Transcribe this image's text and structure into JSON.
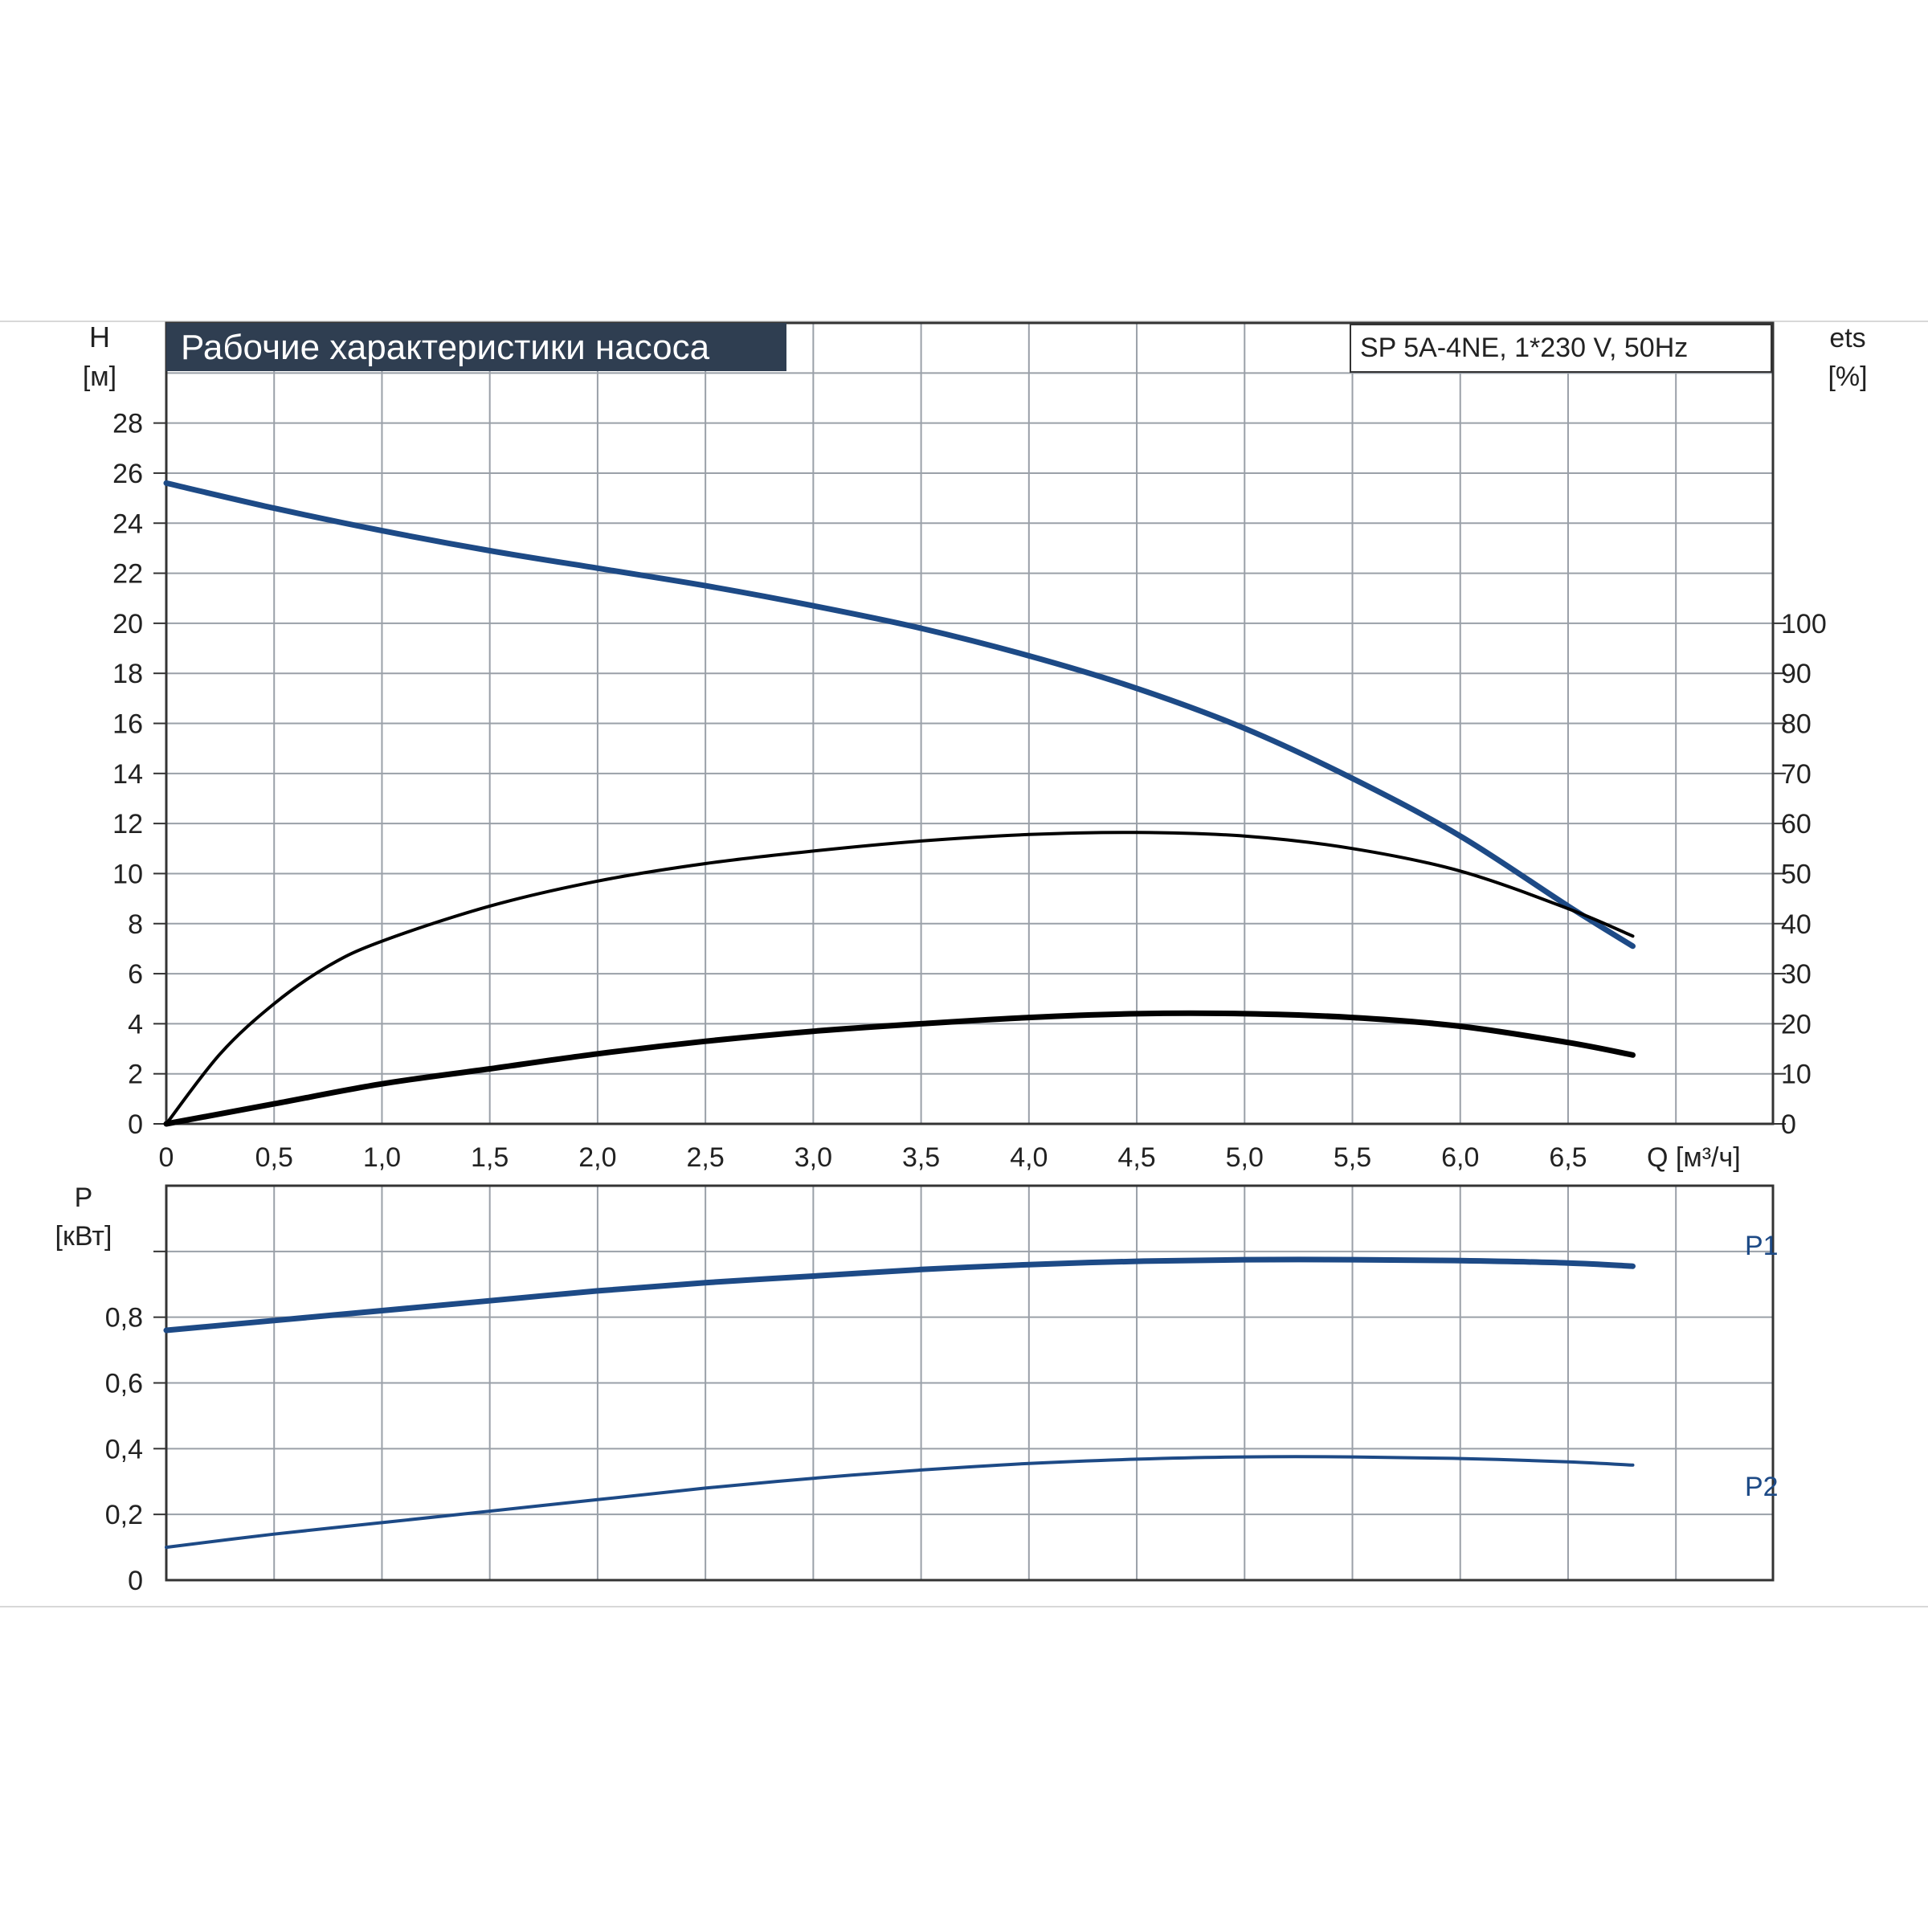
{
  "chart_data": [
    {
      "type": "line",
      "title": "Рабочие характеристики насоса",
      "subtitle": "SP 5A-4NE, 1*230 V, 50Hz",
      "xlabel": "Q [м³/ч]",
      "ylabel_top": "H",
      "ylabel_bottom": "[м]",
      "y2label_top": "ets",
      "y2label_bottom": "[%]",
      "xlim": [
        0,
        7.45
      ],
      "ylim": [
        0,
        32
      ],
      "y2lim": [
        0,
        160
      ],
      "grid": true,
      "x_ticks": [
        "0",
        "0,5",
        "1,0",
        "1,5",
        "2,0",
        "2,5",
        "3,0",
        "3,5",
        "4,0",
        "4,5",
        "5,0",
        "5,5",
        "6,0",
        "6,5"
      ],
      "y_ticks": [
        "0",
        "2",
        "4",
        "6",
        "8",
        "10",
        "12",
        "14",
        "16",
        "18",
        "20",
        "22",
        "24",
        "26",
        "28"
      ],
      "y2_ticks": [
        "0",
        "10",
        "20",
        "30",
        "40",
        "50",
        "60",
        "70",
        "80",
        "90",
        "100"
      ],
      "series": [
        {
          "axis": "left",
          "color": "#1d4a86",
          "x": [
            0,
            0.5,
            1.0,
            1.5,
            2.0,
            2.5,
            3.0,
            3.5,
            4.0,
            4.5,
            5.0,
            5.5,
            6.0,
            6.5,
            6.8
          ],
          "values": [
            25.6,
            24.6,
            23.7,
            22.9,
            22.2,
            21.5,
            20.7,
            19.8,
            18.7,
            17.4,
            15.8,
            13.8,
            11.5,
            8.7,
            7.1
          ]
        },
        {
          "axis": "right",
          "color": "#000000",
          "x": [
            0,
            0.25,
            0.5,
            0.75,
            1.0,
            1.5,
            2.0,
            2.5,
            3.0,
            3.5,
            4.0,
            4.5,
            5.0,
            5.5,
            6.0,
            6.5,
            6.8
          ],
          "values": [
            0,
            14,
            24,
            31.5,
            36.5,
            43.5,
            48.5,
            52,
            54.5,
            56.5,
            57.8,
            58.2,
            57.5,
            55,
            50.5,
            43,
            37.5
          ]
        },
        {
          "axis": "left",
          "color": "#000000",
          "x": [
            0,
            0.5,
            1.0,
            1.5,
            2.0,
            2.5,
            3.0,
            3.5,
            4.0,
            4.5,
            5.0,
            5.5,
            6.0,
            6.5,
            6.8
          ],
          "values": [
            0,
            0.8,
            1.6,
            2.2,
            2.8,
            3.3,
            3.7,
            4.0,
            4.25,
            4.4,
            4.4,
            4.25,
            3.9,
            3.25,
            2.75
          ]
        }
      ]
    },
    {
      "type": "line",
      "ylabel_top": "P",
      "ylabel_bottom": "[кВт]",
      "xlim": [
        0,
        7.45
      ],
      "ylim": [
        0,
        1.2
      ],
      "grid": true,
      "y_ticks": [
        "0",
        "0,2",
        "0,4",
        "0,6",
        "0,8"
      ],
      "series": [
        {
          "name": "P1",
          "color": "#1d4a86",
          "x": [
            0,
            0.5,
            1.0,
            1.5,
            2.0,
            2.5,
            3.0,
            3.5,
            4.0,
            4.5,
            5.0,
            5.5,
            6.0,
            6.5,
            6.8
          ],
          "values": [
            0.76,
            0.79,
            0.82,
            0.85,
            0.88,
            0.905,
            0.925,
            0.945,
            0.96,
            0.97,
            0.975,
            0.975,
            0.972,
            0.965,
            0.955
          ]
        },
        {
          "name": "P2",
          "color": "#1d4a86",
          "x": [
            0,
            0.5,
            1.0,
            1.5,
            2.0,
            2.5,
            3.0,
            3.5,
            4.0,
            4.5,
            5.0,
            5.5,
            6.0,
            6.5,
            6.8
          ],
          "values": [
            0.1,
            0.14,
            0.175,
            0.21,
            0.245,
            0.28,
            0.31,
            0.335,
            0.355,
            0.368,
            0.375,
            0.375,
            0.37,
            0.36,
            0.35
          ]
        }
      ]
    }
  ]
}
